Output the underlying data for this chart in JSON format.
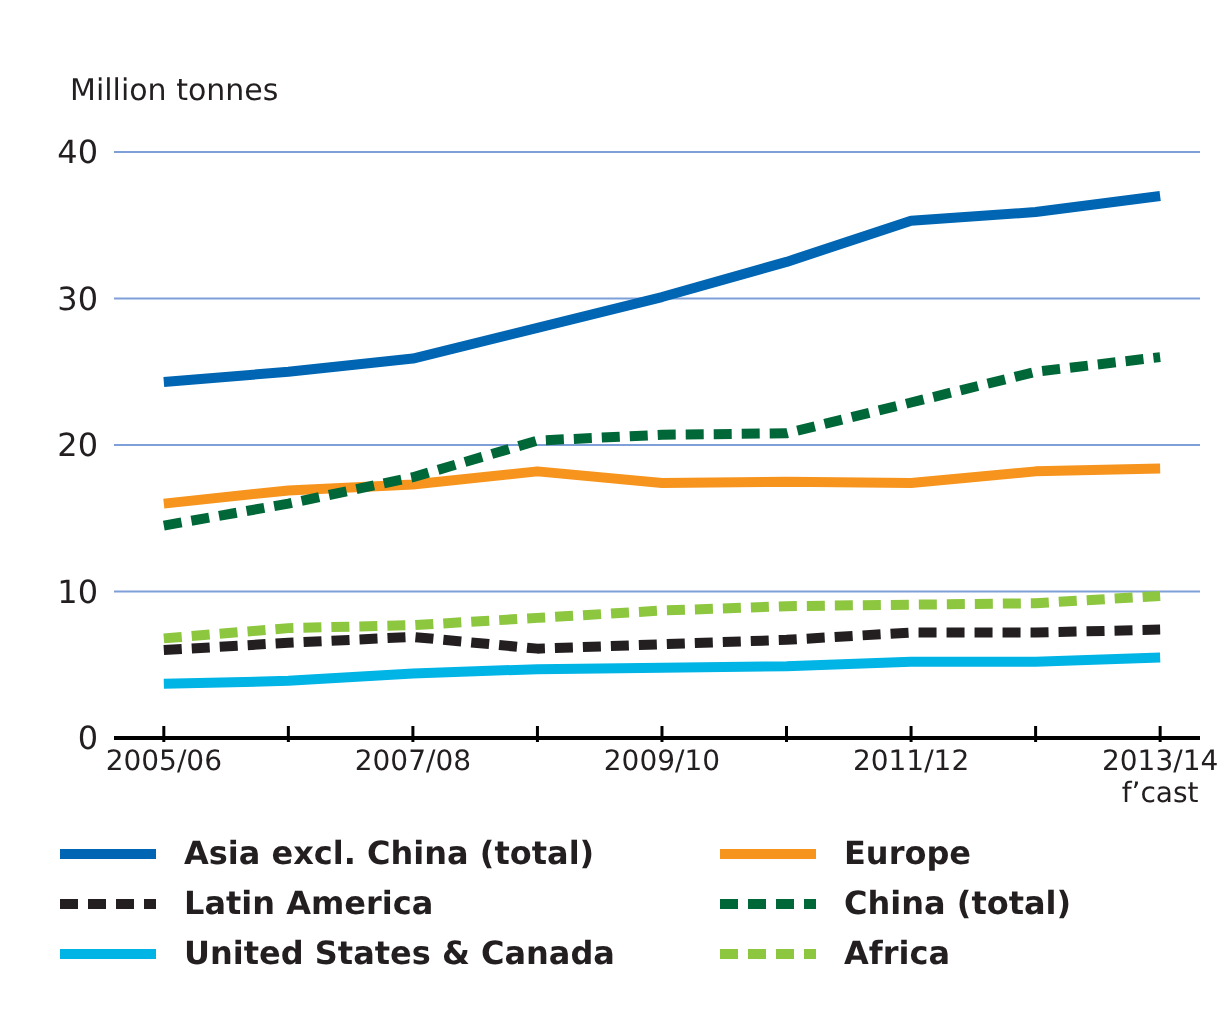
{
  "chart_data": {
    "type": "line",
    "ylabel": "Million tonnes",
    "categories": [
      "2005/06",
      null,
      "2007/08",
      null,
      "2009/10",
      null,
      "2011/12",
      null,
      "2013/14\nf’cast"
    ],
    "series": [
      {
        "name": "Asia excl. China (total)",
        "color": "#0066b3",
        "line_style": "solid",
        "values": [
          24.3,
          25,
          25.9,
          28,
          30.1,
          32.5,
          35.3,
          35.9,
          37
        ]
      },
      {
        "name": "Europe",
        "color": "#f7941d",
        "line_style": "solid",
        "values": [
          16,
          16.9,
          17.3,
          18.2,
          17.4,
          17.5,
          17.4,
          18.2,
          18.4
        ]
      },
      {
        "name": "Latin America",
        "color": "#231f20",
        "line_style": "dashed",
        "values": [
          6,
          6.5,
          6.9,
          6.1,
          6.4,
          6.7,
          7.2,
          7.2,
          7.4
        ]
      },
      {
        "name": "China (total)",
        "color": "#006838",
        "line_style": "dashed",
        "values": [
          14.5,
          16,
          17.8,
          20.3,
          20.7,
          20.8,
          22.9,
          25,
          26
        ]
      },
      {
        "name": "United States & Canada",
        "color": "#00b4e6",
        "line_style": "solid",
        "values": [
          3.7,
          3.9,
          4.4,
          4.7,
          4.8,
          4.9,
          5.2,
          5.2,
          5.5
        ]
      },
      {
        "name": "Africa",
        "color": "#8dc63f",
        "line_style": "dashed",
        "values": [
          6.8,
          7.5,
          7.7,
          8.2,
          8.7,
          9,
          9.1,
          9.2,
          9.7
        ]
      }
    ],
    "ylim": [
      0,
      40
    ],
    "yticks": [
      0,
      10,
      20,
      30,
      40
    ],
    "grid": "y",
    "legend": "bottom",
    "marker": "none"
  }
}
